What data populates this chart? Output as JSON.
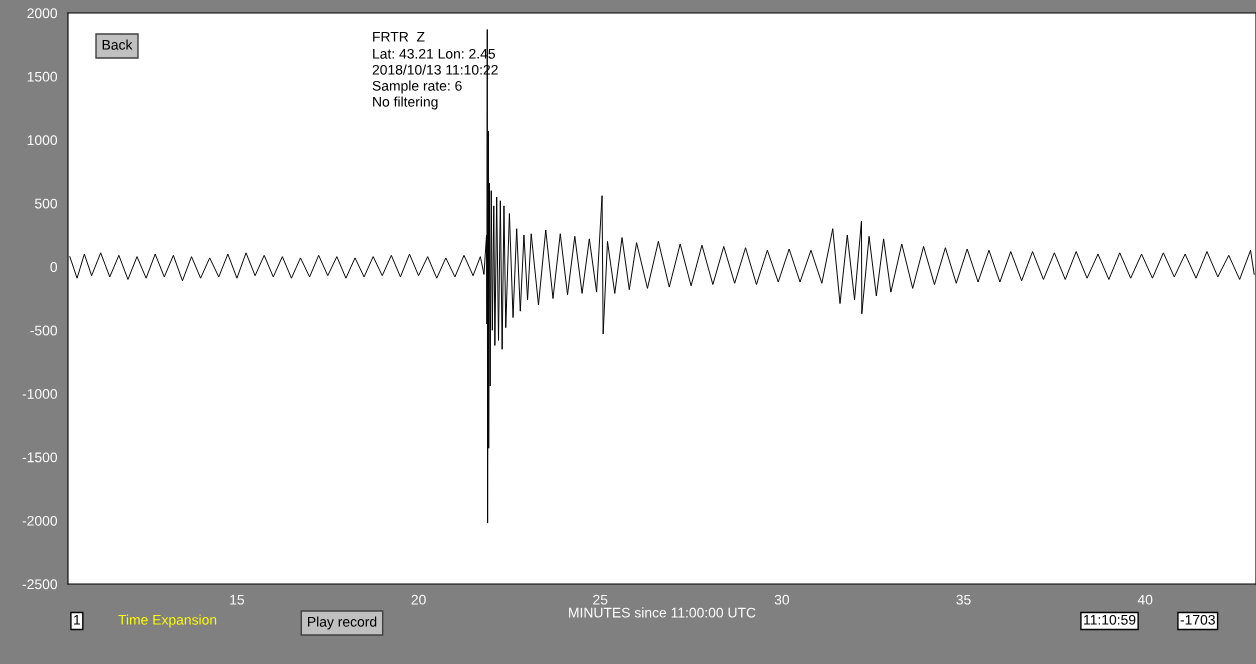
{
  "chart_data": {
    "type": "line",
    "xlabel": "MINUTES since 11:00:00 UTC",
    "annotations": [
      "FRTR  Z",
      "Lat: 43.21 Lon: 2.45",
      "2018/10/13 11:10:22",
      "Sample rate: 6",
      "No filtering",
      "Back",
      "1",
      "Time Expansion",
      "Play record",
      "11:10:59",
      "-1703"
    ],
    "xlim": [
      10.35,
      43.05
    ],
    "xticks": [
      15,
      20,
      25,
      30,
      35,
      40
    ],
    "ylim": [
      -2500,
      2000
    ],
    "yticks": [
      -2500,
      -2000,
      -1500,
      -1000,
      -500,
      0,
      500,
      1000,
      1500,
      2000
    ],
    "grid": false,
    "legend": false,
    "marker": "none",
    "line_style": "solid",
    "series": [
      {
        "color": "#000000",
        "x": [
          10.4,
          10.6,
          10.8,
          11.0,
          11.25,
          11.5,
          11.75,
          12.0,
          12.25,
          12.5,
          12.75,
          13.0,
          13.25,
          13.5,
          13.75,
          14.0,
          14.25,
          14.5,
          14.75,
          15.0,
          15.25,
          15.5,
          15.75,
          16.0,
          16.25,
          16.5,
          16.75,
          17.0,
          17.25,
          17.5,
          17.75,
          18.0,
          18.25,
          18.5,
          18.75,
          19.0,
          19.25,
          19.5,
          19.75,
          20.0,
          20.25,
          20.5,
          20.75,
          21.0,
          21.25,
          21.5,
          21.7,
          21.8,
          21.87,
          21.88,
          21.89,
          21.9,
          21.92,
          21.93,
          21.95,
          21.97,
          22.0,
          22.03,
          22.07,
          22.1,
          22.15,
          22.2,
          22.25,
          22.3,
          22.35,
          22.4,
          22.5,
          22.6,
          22.7,
          22.8,
          22.9,
          23.0,
          23.1,
          23.3,
          23.5,
          23.7,
          23.9,
          24.1,
          24.3,
          24.5,
          24.7,
          24.9,
          25.05,
          25.08,
          25.2,
          25.4,
          25.6,
          25.8,
          26.0,
          26.3,
          26.6,
          26.9,
          27.2,
          27.5,
          27.8,
          28.1,
          28.4,
          28.7,
          29.0,
          29.3,
          29.6,
          29.9,
          30.2,
          30.5,
          30.8,
          31.1,
          31.4,
          31.6,
          31.8,
          32.0,
          32.19,
          32.2,
          32.4,
          32.6,
          32.8,
          33.0,
          33.3,
          33.6,
          33.9,
          34.2,
          34.5,
          34.8,
          35.1,
          35.4,
          35.7,
          36.0,
          36.3,
          36.6,
          36.9,
          37.2,
          37.5,
          37.8,
          38.1,
          38.4,
          38.7,
          39.0,
          39.3,
          39.6,
          39.9,
          40.2,
          40.5,
          40.8,
          41.1,
          41.4,
          41.7,
          42.0,
          42.3,
          42.6,
          42.9,
          43.0
        ],
        "values": [
          80,
          -90,
          100,
          -70,
          110,
          -80,
          90,
          -100,
          80,
          -90,
          100,
          -80,
          90,
          -110,
          80,
          -90,
          70,
          -80,
          100,
          -90,
          110,
          -70,
          90,
          -80,
          80,
          -90,
          70,
          -80,
          90,
          -70,
          80,
          -90,
          70,
          -80,
          80,
          -70,
          90,
          -80,
          100,
          -70,
          80,
          -90,
          70,
          -80,
          90,
          -70,
          80,
          -60,
          250,
          -450,
          1870,
          -2020,
          1070,
          -1430,
          660,
          -940,
          600,
          -500,
          480,
          -620,
          550,
          -580,
          520,
          -650,
          480,
          -480,
          420,
          -400,
          300,
          -350,
          250,
          -260,
          260,
          -300,
          290,
          -250,
          260,
          -220,
          240,
          -210,
          220,
          -200,
          560,
          -530,
          200,
          -210,
          230,
          -180,
          190,
          -170,
          200,
          -160,
          180,
          -150,
          170,
          -140,
          160,
          -130,
          150,
          -140,
          130,
          -120,
          140,
          -120,
          130,
          -130,
          300,
          -290,
          250,
          -260,
          360,
          -370,
          240,
          -230,
          220,
          -200,
          180,
          -170,
          160,
          -140,
          150,
          -130,
          140,
          -120,
          130,
          -120,
          120,
          -110,
          120,
          -100,
          110,
          -100,
          120,
          -90,
          100,
          -100,
          110,
          -90,
          100,
          -90,
          110,
          -80,
          100,
          -90,
          120,
          -80,
          90,
          -100,
          130,
          -60
        ]
      }
    ]
  }
}
